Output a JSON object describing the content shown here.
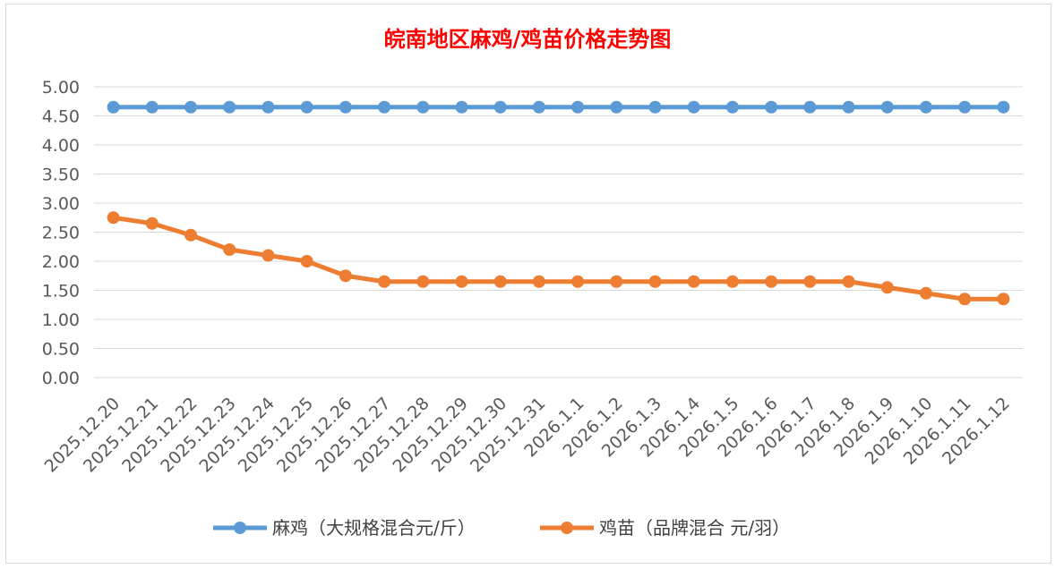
{
  "chart_data": {
    "type": "line",
    "title": "皖南地区麻鸡/鸡苗价格走势图",
    "categories": [
      "2025.12.20",
      "2025.12.21",
      "2025.12.22",
      "2025.12.23",
      "2025.12.24",
      "2025.12.25",
      "2025.12.26",
      "2025.12.27",
      "2025.12.28",
      "2025.12.29",
      "2025.12.30",
      "2025.12.31",
      "2026.1.1",
      "2026.1.2",
      "2026.1.3",
      "2026.1.4",
      "2026.1.5",
      "2026.1.6",
      "2026.1.7",
      "2026.1.8",
      "2026.1.9",
      "2026.1.10",
      "2026.1.11",
      "2026.1.12"
    ],
    "series": [
      {
        "name": "麻鸡（大规格混合元/斤）",
        "color": "#5b9bd5",
        "values": [
          4.65,
          4.65,
          4.65,
          4.65,
          4.65,
          4.65,
          4.65,
          4.65,
          4.65,
          4.65,
          4.65,
          4.65,
          4.65,
          4.65,
          4.65,
          4.65,
          4.65,
          4.65,
          4.65,
          4.65,
          4.65,
          4.65,
          4.65,
          4.65
        ]
      },
      {
        "name": "鸡苗（品牌混合 元/羽）",
        "color": "#ed7d31",
        "values": [
          2.75,
          2.65,
          2.45,
          2.2,
          2.1,
          2.0,
          1.75,
          1.65,
          1.65,
          1.65,
          1.65,
          1.65,
          1.65,
          1.65,
          1.65,
          1.65,
          1.65,
          1.65,
          1.65,
          1.65,
          1.55,
          1.45,
          1.35,
          1.35
        ]
      }
    ],
    "yticks": [
      "0.00",
      "0.50",
      "1.00",
      "1.50",
      "2.00",
      "2.50",
      "3.00",
      "3.50",
      "4.00",
      "4.50",
      "5.00"
    ],
    "ylim": [
      0,
      5
    ],
    "grid": true,
    "legend": "bottom"
  }
}
